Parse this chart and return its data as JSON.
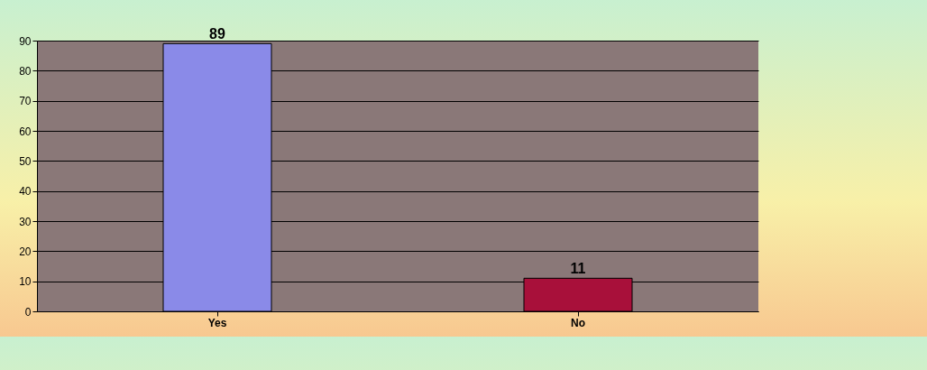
{
  "chart_data": {
    "type": "bar",
    "categories": [
      "Yes",
      "No"
    ],
    "values": [
      89,
      11
    ],
    "colors": [
      "#8a8ae8",
      "#a8103a"
    ],
    "ylim": [
      0,
      90
    ],
    "yticks": [
      0,
      10,
      20,
      30,
      40,
      50,
      60,
      70,
      80,
      90
    ],
    "grid": "y",
    "data_labels": true
  }
}
